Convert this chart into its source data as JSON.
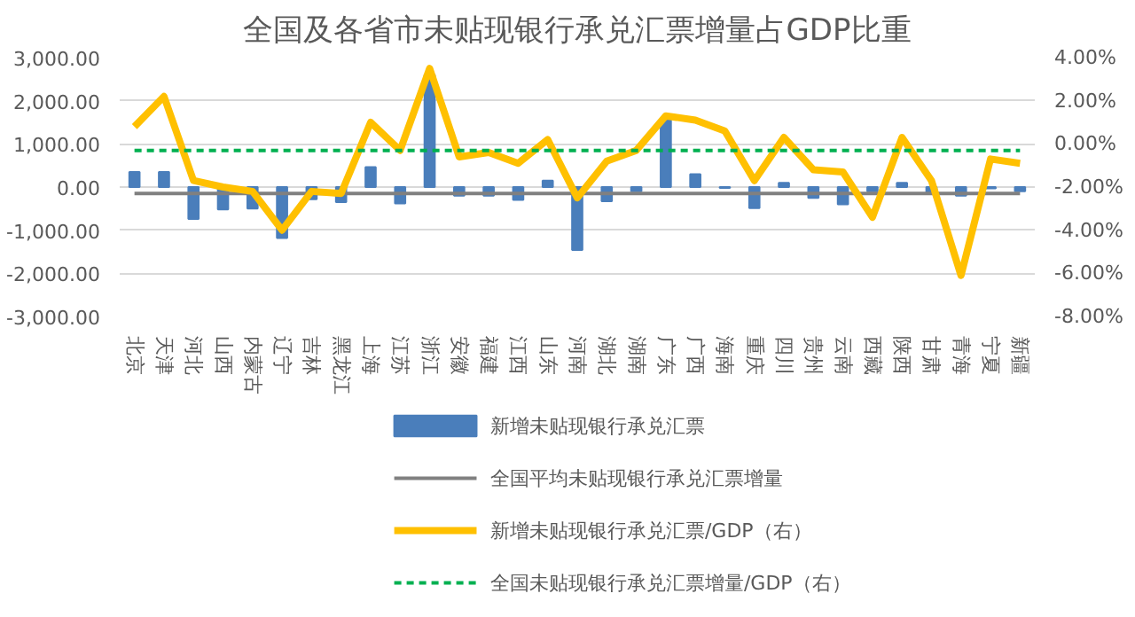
{
  "chart_data": {
    "type": "bar",
    "title": "全国及各省市未贴现银行承兑汇票增量占GDP比重",
    "categories": [
      "北京",
      "天津",
      "河北",
      "山西",
      "内蒙古",
      "辽宁",
      "吉林",
      "黑龙江",
      "上海",
      "江苏",
      "浙江",
      "安徽",
      "福建",
      "江西",
      "山东",
      "河南",
      "湖北",
      "湖南",
      "广东",
      "广西",
      "海南",
      "重庆",
      "四川",
      "贵州",
      "云南",
      "西藏",
      "陕西",
      "甘肃",
      "青海",
      "宁夏",
      "新疆"
    ],
    "series": [
      {
        "name": "新增未贴现银行承兑汇票",
        "color": "#4a7ebb",
        "values": [
          350,
          350,
          -740,
          -520,
          -500,
          -1180,
          -280,
          -350,
          460,
          -380,
          2600,
          -200,
          -200,
          -300,
          150,
          -1460,
          -330,
          -100,
          1560,
          300,
          -20,
          -490,
          100,
          -250,
          -400,
          -100,
          100,
          -150,
          -200,
          -30,
          -100
        ]
      },
      {
        "name": "全国平均未贴现银行承兑汇票增量",
        "type": "line",
        "color": "#808080",
        "line_style": "solid",
        "values": [
          -150,
          -150,
          -150,
          -150,
          -150,
          -150,
          -150,
          -150,
          -150,
          -150,
          -150,
          -150,
          -150,
          -150,
          -150,
          -150,
          -150,
          -150,
          -150,
          -150,
          -150,
          -150,
          -150,
          -150,
          -150,
          -150,
          -150,
          -150,
          -150,
          -150,
          -150
        ]
      },
      {
        "name": "新增未贴现银行承兑汇票/GDP（右）",
        "type": "line",
        "axis": "y2",
        "color": "#ffc000",
        "line_style": "solid",
        "values": [
          0.8,
          2.2,
          -1.7,
          -2.0,
          -2.2,
          -4.0,
          -2.2,
          -2.3,
          1.0,
          -0.3,
          3.5,
          -0.6,
          -0.4,
          -0.9,
          0.2,
          -2.5,
          -0.8,
          -0.3,
          1.3,
          1.1,
          0.6,
          -1.7,
          0.3,
          -1.2,
          -1.3,
          -3.4,
          0.3,
          -1.7,
          -6.1,
          -0.7,
          -0.9
        ]
      },
      {
        "name": "全国未贴现银行承兑汇票增量/GDP（右）",
        "type": "line",
        "axis": "y2",
        "color": "#00b050",
        "line_style": "dashed",
        "values": [
          -0.3,
          -0.3,
          -0.3,
          -0.3,
          -0.3,
          -0.3,
          -0.3,
          -0.3,
          -0.3,
          -0.3,
          -0.3,
          -0.3,
          -0.3,
          -0.3,
          -0.3,
          -0.3,
          -0.3,
          -0.3,
          -0.3,
          -0.3,
          -0.3,
          -0.3,
          -0.3,
          -0.3,
          -0.3,
          -0.3,
          -0.3,
          -0.3,
          -0.3,
          -0.3,
          -0.3
        ]
      }
    ],
    "ylim": [
      -3000,
      3000
    ],
    "yticks": [
      {
        "value": -3000,
        "label": "-3,000.00"
      },
      {
        "value": -2000,
        "label": "-2,000.00"
      },
      {
        "value": -1000,
        "label": "-1,000.00"
      },
      {
        "value": 0,
        "label": "0.00"
      },
      {
        "value": 1000,
        "label": "1,000.00"
      },
      {
        "value": 2000,
        "label": "2,000.00"
      },
      {
        "value": 3000,
        "label": "3,000.00"
      }
    ],
    "y2lim": [
      -8,
      4
    ],
    "y2ticks": [
      {
        "value": -8,
        "label": "-8.00%"
      },
      {
        "value": -6,
        "label": "-6.00%"
      },
      {
        "value": -4,
        "label": "-4.00%"
      },
      {
        "value": -2,
        "label": "-2.00%"
      },
      {
        "value": 0,
        "label": "0.00%"
      },
      {
        "value": 2,
        "label": "2.00%"
      },
      {
        "value": 4,
        "label": "4.00%"
      }
    ],
    "grid": "y",
    "legend": "bottom"
  }
}
